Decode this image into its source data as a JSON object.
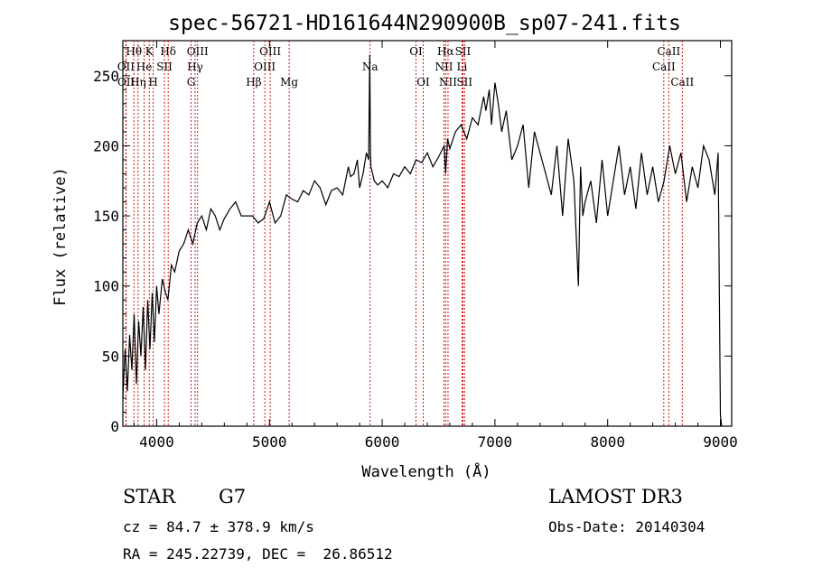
{
  "chart_data": {
    "type": "line",
    "title": "spec-56721-HD161644N290900B_sp07-241.fits",
    "xlabel": "Wavelength (Å)",
    "ylabel": "Flux (relative)",
    "xlim": [
      3700,
      9100
    ],
    "ylim": [
      0,
      275
    ],
    "xticks": [
      4000,
      5000,
      6000,
      7000,
      8000,
      9000
    ],
    "yticks": [
      0,
      50,
      100,
      150,
      200,
      250
    ],
    "grid": false,
    "series_color": "#000000",
    "line_marker_color": "#cc0000",
    "spectrum": {
      "x": [
        3700,
        3720,
        3740,
        3760,
        3780,
        3800,
        3820,
        3840,
        3860,
        3880,
        3900,
        3920,
        3940,
        3960,
        3980,
        4000,
        4020,
        4050,
        4080,
        4100,
        4130,
        4160,
        4200,
        4240,
        4280,
        4320,
        4360,
        4400,
        4440,
        4480,
        4520,
        4560,
        4600,
        4650,
        4700,
        4750,
        4800,
        4850,
        4900,
        4950,
        5000,
        5050,
        5100,
        5150,
        5200,
        5250,
        5300,
        5350,
        5400,
        5450,
        5500,
        5550,
        5600,
        5650,
        5700,
        5720,
        5750,
        5780,
        5800,
        5830,
        5860,
        5880,
        5890,
        5896,
        5900,
        5910,
        5930,
        5960,
        6000,
        6050,
        6100,
        6150,
        6200,
        6250,
        6300,
        6350,
        6400,
        6450,
        6500,
        6550,
        6563,
        6580,
        6600,
        6650,
        6700,
        6750,
        6800,
        6850,
        6900,
        6920,
        6950,
        6970,
        7000,
        7030,
        7060,
        7100,
        7150,
        7200,
        7250,
        7300,
        7350,
        7400,
        7450,
        7500,
        7550,
        7600,
        7650,
        7700,
        7740,
        7760,
        7780,
        7800,
        7850,
        7900,
        7950,
        8000,
        8050,
        8100,
        8150,
        8200,
        8250,
        8300,
        8350,
        8400,
        8450,
        8500,
        8550,
        8600,
        8650,
        8700,
        8750,
        8800,
        8850,
        8900,
        8950,
        8980,
        9000,
        9010
      ],
      "y": [
        20,
        55,
        25,
        65,
        40,
        80,
        30,
        75,
        50,
        85,
        40,
        90,
        55,
        95,
        60,
        100,
        80,
        105,
        95,
        90,
        115,
        110,
        125,
        130,
        140,
        130,
        145,
        150,
        140,
        155,
        150,
        140,
        148,
        155,
        160,
        150,
        150,
        150,
        145,
        148,
        160,
        145,
        150,
        165,
        162,
        160,
        168,
        165,
        175,
        170,
        158,
        168,
        170,
        165,
        185,
        178,
        180,
        190,
        170,
        180,
        195,
        190,
        265,
        195,
        185,
        182,
        175,
        172,
        175,
        170,
        180,
        178,
        185,
        180,
        190,
        188,
        195,
        185,
        192,
        200,
        180,
        205,
        198,
        210,
        215,
        205,
        220,
        215,
        235,
        225,
        240,
        215,
        245,
        230,
        210,
        225,
        190,
        200,
        215,
        170,
        210,
        195,
        180,
        165,
        200,
        150,
        205,
        175,
        100,
        185,
        150,
        160,
        175,
        145,
        190,
        150,
        175,
        200,
        165,
        185,
        155,
        195,
        165,
        185,
        160,
        175,
        200,
        180,
        195,
        160,
        185,
        170,
        200,
        190,
        165,
        195,
        8,
        0
      ],
      "note": ""
    },
    "emission_lines": [
      {
        "label": "Hθ",
        "x": 3798,
        "row": 1
      },
      {
        "label": "OII",
        "x": 3727,
        "row": 2
      },
      {
        "label": "OII",
        "x": 3729,
        "row": 3
      },
      {
        "label": "K",
        "x": 3934,
        "row": 1
      },
      {
        "label": "He",
        "x": 3889,
        "row": 2
      },
      {
        "label": "Hη",
        "x": 3835,
        "row": 3
      },
      {
        "label": "H",
        "x": 3969,
        "row": 3
      },
      {
        "label": "Hδ",
        "x": 4102,
        "row": 1
      },
      {
        "label": "SII",
        "x": 4069,
        "row": 2
      },
      {
        "label": "OIII",
        "x": 4363,
        "row": 1
      },
      {
        "label": "Hγ",
        "x": 4341,
        "row": 2
      },
      {
        "label": "G",
        "x": 4305,
        "row": 3
      },
      {
        "label": "Hβ",
        "x": 4861,
        "row": 3
      },
      {
        "label": "OIII",
        "x": 5007,
        "row": 1
      },
      {
        "label": "OIII",
        "x": 4959,
        "row": 2
      },
      {
        "label": "Mg",
        "x": 5175,
        "row": 3
      },
      {
        "label": "Na",
        "x": 5893,
        "row": 2
      },
      {
        "label": "OI",
        "x": 6300,
        "row": 1
      },
      {
        "label": "OI",
        "x": 6364,
        "row": 3
      },
      {
        "label": "Hα",
        "x": 6563,
        "row": 1
      },
      {
        "label": "SII",
        "x": 6716,
        "row": 1
      },
      {
        "label": "NII",
        "x": 6548,
        "row": 2
      },
      {
        "label": "Li",
        "x": 6708,
        "row": 2
      },
      {
        "label": "NII",
        "x": 6584,
        "row": 3
      },
      {
        "label": "SII",
        "x": 6731,
        "row": 3
      },
      {
        "label": "CaII",
        "x": 8542,
        "row": 1
      },
      {
        "label": "CaII",
        "x": 8498,
        "row": 2
      },
      {
        "label": "CaII",
        "x": 8662,
        "row": 3
      }
    ]
  },
  "info": {
    "object_class": "STAR",
    "subclass": "G7",
    "survey": "LAMOST DR3",
    "redshift": "cz = 84.7 ± 378.9 km/s",
    "obs_date": "Obs-Date: 20140304",
    "coords": "RA = 245.22739, DEC =  26.86512"
  }
}
